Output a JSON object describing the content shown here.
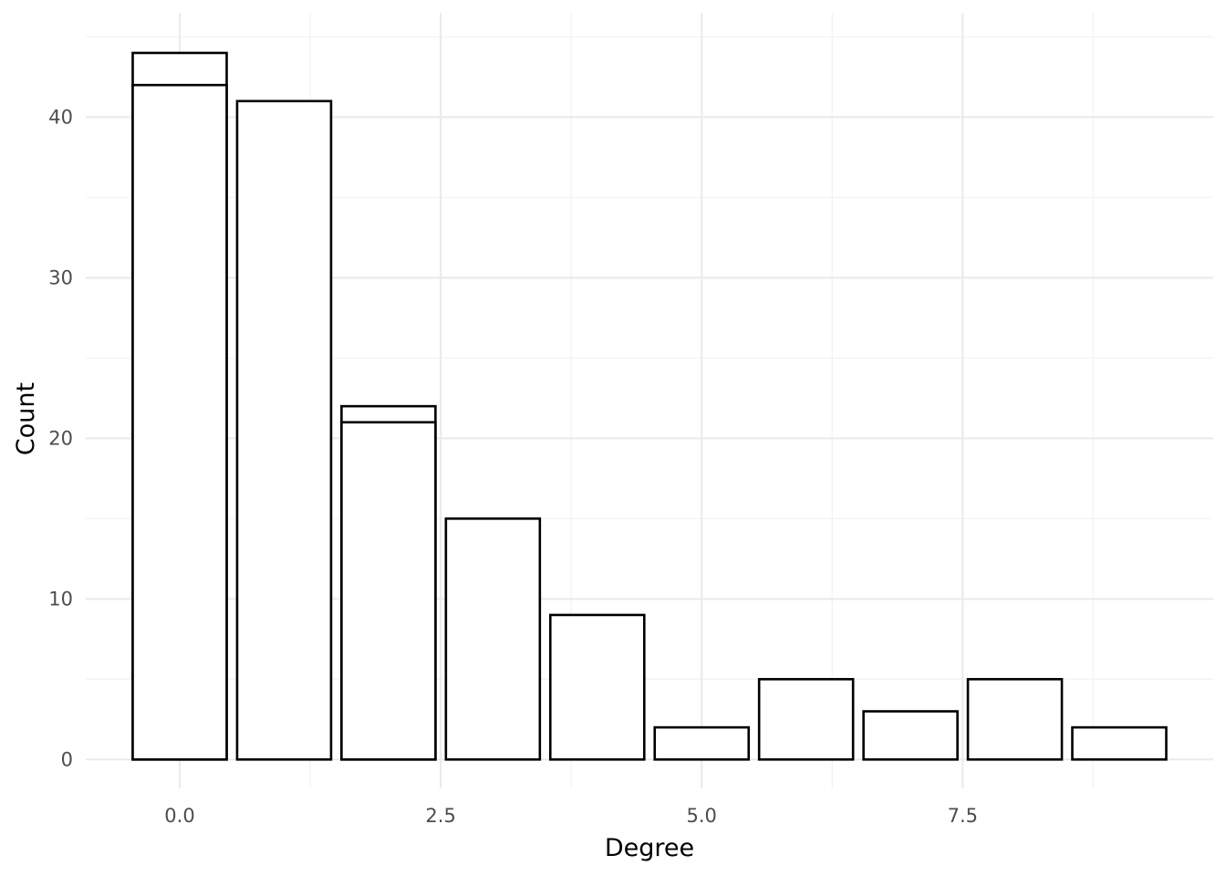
{
  "chart_data": {
    "type": "bar",
    "title": "",
    "xlabel": "Degree",
    "ylabel": "Count",
    "xlim": [
      -0.9,
      9.9
    ],
    "ylim": [
      -1.8,
      46.5
    ],
    "x_ticks": [
      0.0,
      2.5,
      5.0,
      7.5
    ],
    "x_tick_labels": [
      "0.0",
      "2.5",
      "5.0",
      "7.5"
    ],
    "y_ticks": [
      0,
      10,
      20,
      30,
      40
    ],
    "y_tick_labels": [
      "0",
      "10",
      "20",
      "30",
      "40"
    ],
    "grid": true,
    "legend": "none",
    "series": [
      {
        "x": [
          0,
          1,
          2,
          3,
          4,
          5,
          6,
          7,
          8,
          9
        ],
        "values": [
          42,
          41,
          21,
          15,
          9,
          2,
          5,
          3,
          5,
          2
        ]
      },
      {
        "x": [
          0,
          2
        ],
        "values": [
          44,
          22
        ]
      }
    ],
    "bar_width": 0.9,
    "colors": {
      "bar_fill": "#ffffff",
      "bar_stroke": "#000000",
      "grid_major": "#ebebeb",
      "grid_minor": "#f3f3f3",
      "tick_text": "#4d4d4d",
      "title_text": "#000000"
    }
  }
}
